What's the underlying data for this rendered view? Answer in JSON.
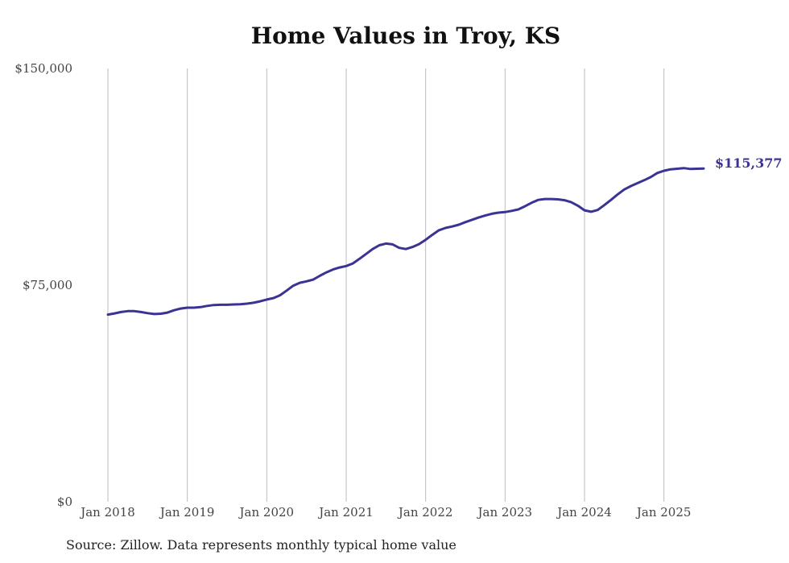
{
  "chart_data": {
    "type": "line",
    "title": "Home Values in Troy, KS",
    "xlabel": "",
    "ylabel": "",
    "ylim": [
      0,
      150000
    ],
    "xlim": [
      "2018-01",
      "2025-07"
    ],
    "yticks": [
      {
        "value": 0,
        "label": "$0"
      },
      {
        "value": 75000,
        "label": "$75,000"
      },
      {
        "value": 150000,
        "label": "$150,000"
      }
    ],
    "xticks": [
      {
        "value": "2018-01",
        "label": "Jan 2018"
      },
      {
        "value": "2019-01",
        "label": "Jan 2019"
      },
      {
        "value": "2020-01",
        "label": "Jan 2020"
      },
      {
        "value": "2021-01",
        "label": "Jan 2021"
      },
      {
        "value": "2022-01",
        "label": "Jan 2022"
      },
      {
        "value": "2023-01",
        "label": "Jan 2023"
      },
      {
        "value": "2024-01",
        "label": "Jan 2024"
      },
      {
        "value": "2025-01",
        "label": "Jan 2025"
      }
    ],
    "grid": "vertical",
    "line_color": "#3b3394",
    "end_label": "$115,377",
    "series": [
      {
        "x": [
          "2018-01",
          "2018-02",
          "2018-03",
          "2018-04",
          "2018-05",
          "2018-06",
          "2018-07",
          "2018-08",
          "2018-09",
          "2018-10",
          "2018-11",
          "2018-12",
          "2019-01",
          "2019-02",
          "2019-03",
          "2019-04",
          "2019-05",
          "2019-06",
          "2019-07",
          "2019-08",
          "2019-09",
          "2019-10",
          "2019-11",
          "2019-12",
          "2020-01",
          "2020-02",
          "2020-03",
          "2020-04",
          "2020-05",
          "2020-06",
          "2020-07",
          "2020-08",
          "2020-09",
          "2020-10",
          "2020-11",
          "2020-12",
          "2021-01",
          "2021-02",
          "2021-03",
          "2021-04",
          "2021-05",
          "2021-06",
          "2021-07",
          "2021-08",
          "2021-09",
          "2021-10",
          "2021-11",
          "2021-12",
          "2022-01",
          "2022-02",
          "2022-03",
          "2022-04",
          "2022-05",
          "2022-06",
          "2022-07",
          "2022-08",
          "2022-09",
          "2022-10",
          "2022-11",
          "2022-12",
          "2023-01",
          "2023-02",
          "2023-03",
          "2023-04",
          "2023-05",
          "2023-06",
          "2023-07",
          "2023-08",
          "2023-09",
          "2023-10",
          "2023-11",
          "2023-12",
          "2024-01",
          "2024-02",
          "2024-03",
          "2024-04",
          "2024-05",
          "2024-06",
          "2024-07",
          "2024-08",
          "2024-09",
          "2024-10",
          "2024-11",
          "2024-12",
          "2025-01",
          "2025-02",
          "2025-03",
          "2025-04",
          "2025-05",
          "2025-06",
          "2025-07"
        ],
        "values": [
          64800,
          65200,
          65700,
          66000,
          66000,
          65700,
          65300,
          65000,
          65100,
          65500,
          66300,
          66900,
          67200,
          67200,
          67400,
          67800,
          68100,
          68200,
          68200,
          68300,
          68400,
          68600,
          68900,
          69400,
          70000,
          70500,
          71500,
          73100,
          74800,
          75800,
          76300,
          76900,
          78200,
          79400,
          80400,
          81100,
          81600,
          82500,
          84100,
          85800,
          87500,
          88800,
          89400,
          89100,
          87900,
          87500,
          88200,
          89200,
          90700,
          92400,
          94000,
          94800,
          95300,
          95900,
          96800,
          97600,
          98400,
          99100,
          99700,
          100100,
          100300,
          100700,
          101200,
          102300,
          103500,
          104500,
          104800,
          104800,
          104700,
          104400,
          103700,
          102500,
          100900,
          100400,
          101000,
          102700,
          104500,
          106400,
          108100,
          109300,
          110300,
          111300,
          112400,
          113800,
          114600,
          115100,
          115300,
          115500,
          115200,
          115300,
          115377
        ]
      }
    ]
  },
  "footer": {
    "source": "Source: Zillow. Data represents monthly typical home value"
  }
}
